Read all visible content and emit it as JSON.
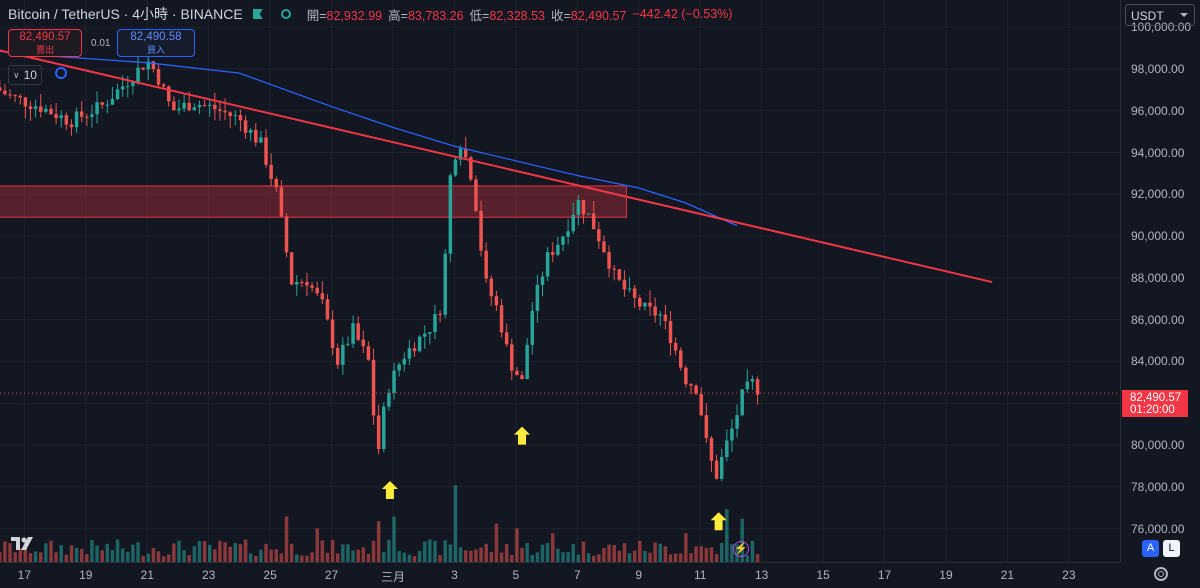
{
  "legend": {
    "title": "Bitcoin / TetherUS · 4小時 · BINANCE",
    "open_label": "開=",
    "open": "82,932.99",
    "high_label": "高=",
    "high": "83,783.26",
    "low_label": "低=",
    "low": "82,328.53",
    "close_label": "收=",
    "close": "82,490.57",
    "change": "−442.42 (−0.53%)"
  },
  "trade": {
    "sell_price": "82,490.57",
    "sell_label": "賣出",
    "spread": "0.01",
    "buy_price": "82,490.58",
    "buy_label": "買入"
  },
  "ma_chip": {
    "value": "10"
  },
  "currency": "USDT",
  "last_price": {
    "price": "82,490.57",
    "countdown": "01:20:00"
  },
  "axis_buttons": {
    "auto": "A",
    "log": "L"
  },
  "colors": {
    "up": "#26a69a",
    "down": "#ef5350",
    "trendline": "#f23645",
    "ma": "#2962ff",
    "zone": "#f23645",
    "arrow": "#ffeb3b",
    "bg": "#131722"
  },
  "chart_data": {
    "type": "candlestick",
    "symbol": "BTC/USDT",
    "timeframe": "4H",
    "ylim": [
      74400,
      101300
    ],
    "y_ticks": [
      "100,000.00",
      "98,000.00",
      "96,000.00",
      "94,000.00",
      "92,000.00",
      "90,000.00",
      "88,000.00",
      "86,000.00",
      "84,000.00",
      "82,000.00",
      "80,000.00",
      "78,000.00",
      "76,000.00"
    ],
    "y_tick_values": [
      100000,
      98000,
      96000,
      94000,
      92000,
      90000,
      88000,
      86000,
      84000,
      82000,
      80000,
      78000,
      76000
    ],
    "x_ticks": [
      "17",
      "19",
      "21",
      "23",
      "25",
      "27",
      "三月",
      "3",
      "5",
      "7",
      "9",
      "11",
      "13",
      "15",
      "17",
      "19",
      "21",
      "23"
    ],
    "x_tick_days": [
      -12,
      -10,
      -8,
      -6,
      -4,
      -2,
      0,
      2,
      4,
      6,
      8,
      10,
      12,
      14,
      16,
      18,
      20,
      22
    ],
    "approx_close_path": [
      [
        -13.5,
        97600
      ],
      [
        -12.5,
        96700
      ],
      [
        -11.5,
        96200
      ],
      [
        -10.5,
        95500
      ],
      [
        -9.5,
        96200
      ],
      [
        -8.8,
        97200
      ],
      [
        -8.0,
        98400
      ],
      [
        -7.7,
        97800
      ],
      [
        -7.2,
        96000
      ],
      [
        -6.5,
        96400
      ],
      [
        -5.8,
        96100
      ],
      [
        -5.0,
        95600
      ],
      [
        -4.3,
        94400
      ],
      [
        -3.8,
        92100
      ],
      [
        -3.3,
        87800
      ],
      [
        -2.8,
        87900
      ],
      [
        -2.3,
        86700
      ],
      [
        -1.8,
        84000
      ],
      [
        -1.3,
        85500
      ],
      [
        -0.8,
        84000
      ],
      [
        -0.5,
        79500
      ],
      [
        -0.2,
        82600
      ],
      [
        0.3,
        84200
      ],
      [
        0.8,
        85000
      ],
      [
        1.3,
        85800
      ],
      [
        1.6,
        86800
      ],
      [
        1.9,
        93600
      ],
      [
        2.2,
        94500
      ],
      [
        2.6,
        92700
      ],
      [
        3.0,
        87800
      ],
      [
        3.4,
        86500
      ],
      [
        3.8,
        84000
      ],
      [
        4.2,
        83000
      ],
      [
        4.5,
        86300
      ],
      [
        5.0,
        88900
      ],
      [
        5.6,
        90200
      ],
      [
        6.0,
        91700
      ],
      [
        6.4,
        90900
      ],
      [
        6.9,
        89300
      ],
      [
        7.2,
        88100
      ],
      [
        7.5,
        87500
      ],
      [
        7.8,
        87000
      ],
      [
        8.2,
        86500
      ],
      [
        8.7,
        86200
      ],
      [
        9.1,
        85000
      ],
      [
        9.5,
        83200
      ],
      [
        9.9,
        82700
      ],
      [
        10.2,
        80100
      ],
      [
        10.5,
        78400
      ],
      [
        10.8,
        79800
      ],
      [
        11.1,
        81000
      ],
      [
        11.4,
        82500
      ],
      [
        11.8,
        83100
      ],
      [
        11.9,
        82490
      ]
    ],
    "resistance_zone": {
      "from_day": -14,
      "to_day": 7.6,
      "y_low": 90900,
      "y_high": 92400
    },
    "trendline": {
      "start": [
        -14,
        99300
      ],
      "end": [
        19.5,
        87800
      ]
    },
    "moving_average": {
      "period": 10,
      "points": [
        [
          -14,
          99000
        ],
        [
          -11,
          98600
        ],
        [
          -8,
          98300
        ],
        [
          -5,
          97800
        ],
        [
          -2,
          96200
        ],
        [
          0,
          95200
        ],
        [
          2,
          94300
        ],
        [
          4,
          93600
        ],
        [
          6,
          92900
        ],
        [
          8,
          92300
        ],
        [
          9.5,
          91600
        ],
        [
          11.2,
          90500
        ]
      ]
    },
    "volume_spikes": [
      [
        -3.5,
        0.95
      ],
      [
        -2.5,
        0.7
      ],
      [
        -0.5,
        0.85
      ],
      [
        0.0,
        0.95
      ],
      [
        2.0,
        1.6
      ],
      [
        3.3,
        0.8
      ],
      [
        4.0,
        0.7
      ],
      [
        5.2,
        0.6
      ],
      [
        9.5,
        0.6
      ],
      [
        10.8,
        1.1
      ],
      [
        11.4,
        0.9
      ]
    ],
    "annotations": [
      {
        "type": "up-arrow",
        "day": -0.1,
        "y": 77800
      },
      {
        "type": "up-arrow",
        "day": 4.2,
        "y": 80400
      },
      {
        "type": "up-arrow",
        "day": 10.6,
        "y": 76300
      }
    ]
  }
}
